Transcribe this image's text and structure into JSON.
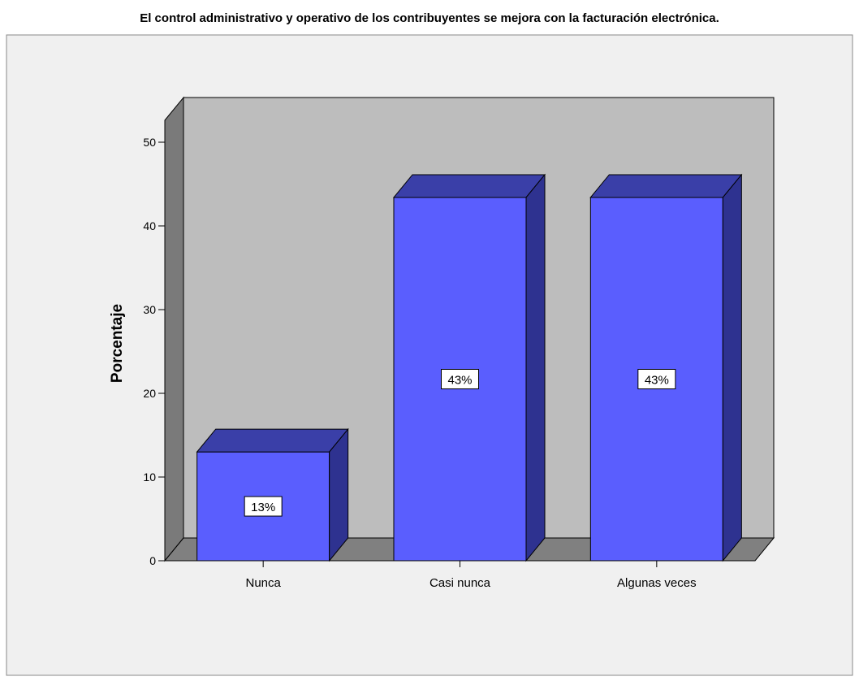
{
  "chart_data": {
    "type": "bar",
    "title": "El control administrativo y operativo de los contribuyentes se mejora con la facturación electrónica.",
    "xlabel": "",
    "ylabel": "Porcentaje",
    "categories": [
      "Nunca",
      "Casi nunca",
      "Algunas veces"
    ],
    "values": [
      13.0,
      43.4,
      43.4
    ],
    "data_labels": [
      "13%",
      "43%",
      "43%"
    ],
    "ylim": [
      0,
      50
    ],
    "yticks": [
      0,
      10,
      20,
      30,
      40,
      50
    ],
    "render_style": "3d-bar",
    "grid": false,
    "legend": "none",
    "colors": {
      "bar_front": "#5a5efe",
      "bar_top": "#3a3fa8",
      "bar_side": "#2e3290",
      "back_wall": "#bdbdbd",
      "left_wall": "#7a7a7a",
      "floor": "#808080",
      "chart_background": "#f0f0f0"
    }
  }
}
